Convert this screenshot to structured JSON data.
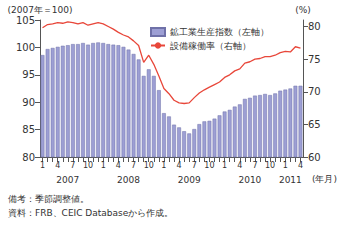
{
  "chart_data": {
    "type": "bar",
    "ylabel": "(2007年＝100)",
    "y2label": "(%)",
    "xlabel": "(年月)",
    "notes": [
      "備考：季節調整値。",
      "資料：FRB、CEIC Databaseから作成。"
    ],
    "categories": [
      "1",
      null,
      null,
      "4",
      null,
      null,
      "7",
      null,
      null,
      "10",
      null,
      null,
      "1",
      null,
      null,
      "4",
      null,
      null,
      "7",
      null,
      null,
      "10",
      null,
      null,
      "1",
      null,
      null,
      "4",
      null,
      null,
      "7",
      null,
      null,
      "10",
      null,
      null,
      "1",
      null,
      null,
      "4",
      null,
      null,
      "7",
      null,
      null,
      "10",
      null,
      null,
      "1",
      null,
      null,
      "4"
    ],
    "year_labels": [
      null,
      null,
      null,
      null,
      null,
      "2007",
      null,
      null,
      null,
      null,
      null,
      null,
      null,
      null,
      null,
      null,
      null,
      "2008",
      null,
      null,
      null,
      null,
      null,
      null,
      null,
      null,
      null,
      null,
      null,
      "2009",
      null,
      null,
      null,
      null,
      null,
      null,
      null,
      null,
      null,
      null,
      null,
      "2010",
      null,
      null,
      null,
      null,
      null,
      null,
      null,
      "2011",
      null,
      null
    ],
    "series": [
      {
        "name": "鉱工業生産指数（左軸）",
        "type": "bar",
        "color": "#9d9fd4",
        "values": [
          98.6,
          99.7,
          99.9,
          100.1,
          100.3,
          100.4,
          100.6,
          100.6,
          100.8,
          100.5,
          100.8,
          100.9,
          100.8,
          100.6,
          100.5,
          100.4,
          100.1,
          99.6,
          98.8,
          97.8,
          94.8,
          96.0,
          94.8,
          92.2,
          88.0,
          87.4,
          85.9,
          85.4,
          84.7,
          84.3,
          85.1,
          86.0,
          86.5,
          86.6,
          87.0,
          87.6,
          88.3,
          88.6,
          89.2,
          89.6,
          90.6,
          90.8,
          91.2,
          91.3,
          91.5,
          91.3,
          91.6,
          92.1,
          92.3,
          92.5,
          93.0,
          93.0
        ]
      },
      {
        "name": "設備稼働率（右軸）",
        "type": "line",
        "axis": "y2",
        "color": "#e8473a",
        "values": [
          79.8,
          80.3,
          80.4,
          80.6,
          80.5,
          80.7,
          80.6,
          80.4,
          80.6,
          80.2,
          80.4,
          80.6,
          80.4,
          80.0,
          79.6,
          79.1,
          78.7,
          78.4,
          77.8,
          77.1,
          74.5,
          75.6,
          74.2,
          72.4,
          70.5,
          69.7,
          68.7,
          68.3,
          68.2,
          68.3,
          69.1,
          69.8,
          70.3,
          70.7,
          71.1,
          71.5,
          72.2,
          72.6,
          73.2,
          73.5,
          74.4,
          74.6,
          75.0,
          75.1,
          75.4,
          75.4,
          75.6,
          76.0,
          76.2,
          76.1,
          76.9,
          76.7
        ]
      }
    ],
    "ylim": [
      80,
      105
    ],
    "yticks": [
      80,
      85,
      90,
      95,
      100,
      105
    ],
    "y2lim": [
      60,
      81
    ],
    "y2ticks": [
      60,
      65,
      70,
      75,
      80
    ],
    "grid": false,
    "legend": "upper center"
  }
}
